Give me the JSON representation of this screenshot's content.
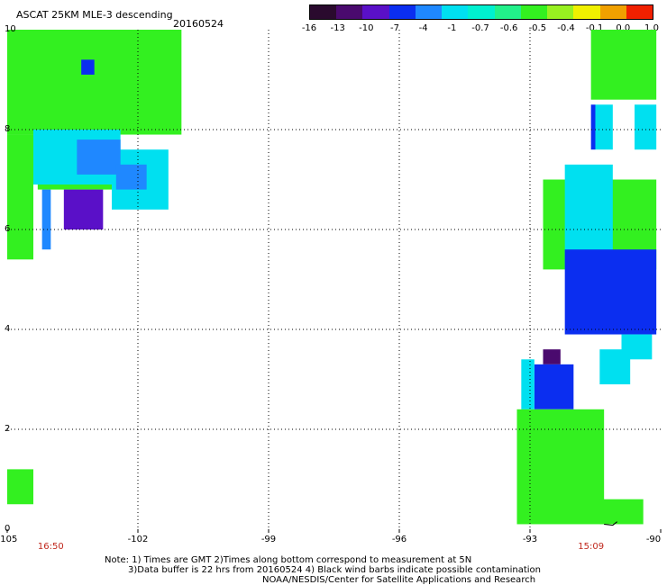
{
  "title": "ASCAT 25KM MLE-3 descending",
  "date": "20160524",
  "colorbar": {
    "ticks": [
      "-16",
      "-13",
      "-10",
      "-7",
      "-4",
      "-1",
      "-0.7",
      "-0.6",
      "-0.5",
      "-0.4",
      "-0.1",
      "0.0",
      "1.0"
    ],
    "colors": [
      "#2a0a2e",
      "#4a0a6e",
      "#5a10c8",
      "#0b2ef0",
      "#1f88ff",
      "#00e0f0",
      "#00f0d0",
      "#22f08a",
      "#33f020",
      "#98f020",
      "#f0f000",
      "#f0a000",
      "#f02000"
    ]
  },
  "axes": {
    "x_ticks": [
      "-105",
      "-102",
      "-99",
      "-96",
      "-93",
      "-90"
    ],
    "y_ticks": [
      "10",
      "8",
      "6",
      "4",
      "2",
      "0"
    ],
    "x_min": -105,
    "x_max": -90,
    "y_min": 0,
    "y_max": 10
  },
  "time_labels": [
    {
      "lon": -104.0,
      "text": "16:50"
    },
    {
      "lon": -91.6,
      "text": "15:09"
    }
  ],
  "notes": [
    "Note: 1) Times are GMT 2)Times along bottom correspond to measurement at 5N",
    "3)Data buffer is 22 hrs from 20160524 4) Black wind barbs indicate possible contamination",
    "NOAA/NESDIS/Center for Satellite Applications and Research"
  ],
  "chart_data": {
    "type": "heatmap",
    "title": "ASCAT 25KM MLE-3 descending 20160524",
    "xlabel": "",
    "ylabel": "",
    "xlim": [
      -105,
      -90
    ],
    "ylim": [
      0,
      10
    ],
    "colorbar_values": [
      -16,
      -13,
      -10,
      -7,
      -4,
      -1,
      -0.7,
      -0.6,
      -0.5,
      -0.4,
      -0.1,
      0.0,
      1.0
    ],
    "regions": [
      {
        "name": "west-green-top",
        "lon": [
          -105.0,
          -101.0
        ],
        "lat": [
          7.9,
          10.0
        ],
        "value": -0.5
      },
      {
        "name": "west-green-left",
        "lon": [
          -105.0,
          -104.4
        ],
        "lat": [
          5.4,
          7.9
        ],
        "value": -0.5
      },
      {
        "name": "west-green-mid",
        "lon": [
          -104.3,
          -102.6
        ],
        "lat": [
          6.8,
          8.0
        ],
        "value": -0.5
      },
      {
        "name": "west-cyan-a",
        "lon": [
          -104.4,
          -102.4
        ],
        "lat": [
          6.9,
          8.0
        ],
        "value": -1
      },
      {
        "name": "west-cyan-b",
        "lon": [
          -102.6,
          -101.3
        ],
        "lat": [
          6.4,
          7.6
        ],
        "value": -1
      },
      {
        "name": "west-light-blue",
        "lon": [
          -103.4,
          -102.4
        ],
        "lat": [
          7.1,
          7.8
        ],
        "value": -4
      },
      {
        "name": "west-light-blue-2",
        "lon": [
          -102.5,
          -101.8
        ],
        "lat": [
          6.8,
          7.3
        ],
        "value": -4
      },
      {
        "name": "west-blue",
        "lon": [
          -104.2,
          -104.0
        ],
        "lat": [
          5.6,
          6.8
        ],
        "value": -4
      },
      {
        "name": "west-indigo",
        "lon": [
          -103.7,
          -102.8
        ],
        "lat": [
          6.0,
          6.8
        ],
        "value": -10
      },
      {
        "name": "west-blue-dot",
        "lon": [
          -103.3,
          -103.0
        ],
        "lat": [
          9.1,
          9.4
        ],
        "value": -7
      },
      {
        "name": "west-green-bottom",
        "lon": [
          -105.0,
          -104.4
        ],
        "lat": [
          0.5,
          1.2
        ],
        "value": -0.5
      },
      {
        "name": "east-green-top",
        "lon": [
          -91.6,
          -90.1
        ],
        "lat": [
          8.6,
          10.0
        ],
        "value": -0.5
      },
      {
        "name": "east-cyan-small",
        "lon": [
          -90.6,
          -90.1
        ],
        "lat": [
          7.6,
          8.5
        ],
        "value": -1
      },
      {
        "name": "east-blue-strip",
        "lon": [
          -91.6,
          -91.5
        ],
        "lat": [
          7.6,
          8.5
        ],
        "value": -7
      },
      {
        "name": "east-cyan-col",
        "lon": [
          -91.5,
          -91.1
        ],
        "lat": [
          7.6,
          8.5
        ],
        "value": -1
      },
      {
        "name": "east-green-mid",
        "lon": [
          -92.7,
          -90.1
        ],
        "lat": [
          5.2,
          7.0
        ],
        "value": -0.5
      },
      {
        "name": "east-cyan-mid",
        "lon": [
          -92.2,
          -91.1
        ],
        "lat": [
          5.2,
          7.3
        ],
        "value": -1
      },
      {
        "name": "east-blue-mass",
        "lon": [
          -92.2,
          -90.1
        ],
        "lat": [
          3.9,
          5.6
        ],
        "value": -7
      },
      {
        "name": "east-cyan-right",
        "lon": [
          -90.9,
          -90.2
        ],
        "lat": [
          3.4,
          3.9
        ],
        "value": -1
      },
      {
        "name": "east-cyan-right-2",
        "lon": [
          -91.4,
          -90.7
        ],
        "lat": [
          2.9,
          3.6
        ],
        "value": -1
      },
      {
        "name": "east-purple-top",
        "lon": [
          -92.7,
          -92.3
        ],
        "lat": [
          3.3,
          3.6
        ],
        "value": -13
      },
      {
        "name": "east-blue-low",
        "lon": [
          -92.9,
          -92.0
        ],
        "lat": [
          2.4,
          3.3
        ],
        "value": -7
      },
      {
        "name": "east-cyan-low",
        "lon": [
          -93.2,
          -92.9
        ],
        "lat": [
          2.4,
          3.4
        ],
        "value": -1
      },
      {
        "name": "east-green-low",
        "lon": [
          -93.3,
          -91.3
        ],
        "lat": [
          0.1,
          2.4
        ],
        "value": -0.5
      },
      {
        "name": "east-green-bottom-right",
        "lon": [
          -91.4,
          -90.4
        ],
        "lat": [
          0.1,
          0.6
        ],
        "value": -0.5
      }
    ]
  }
}
